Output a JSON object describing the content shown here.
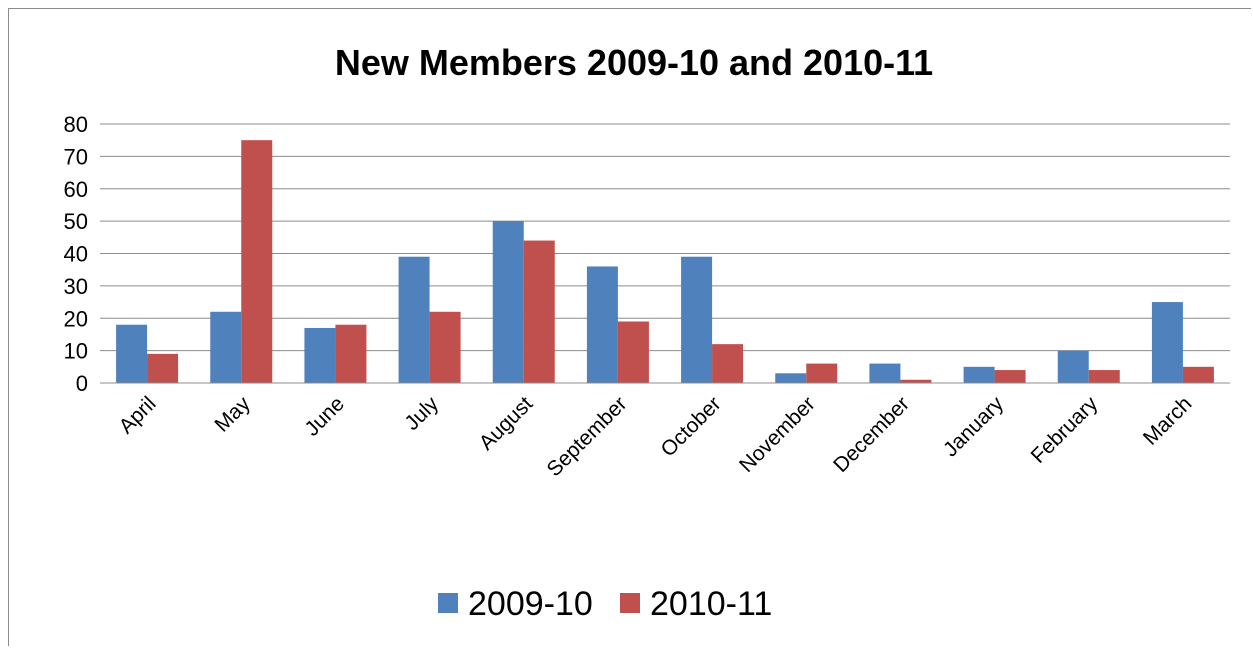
{
  "chart_data": {
    "type": "bar",
    "title": "New Members 2009-10 and 2010-11",
    "xlabel": "",
    "ylabel": "",
    "categories": [
      "April",
      "May",
      "June",
      "July",
      "August",
      "September",
      "October",
      "November",
      "December",
      "January",
      "February",
      "March"
    ],
    "series": [
      {
        "name": "2009-10",
        "color": "#4f81bd",
        "values": [
          18,
          22,
          17,
          39,
          50,
          36,
          39,
          3,
          6,
          5,
          10,
          25
        ]
      },
      {
        "name": "2010-11",
        "color": "#c0504d",
        "values": [
          9,
          75,
          18,
          22,
          44,
          19,
          12,
          6,
          1,
          4,
          4,
          5
        ]
      }
    ],
    "ylim": [
      0,
      80
    ],
    "yticks": [
      0,
      10,
      20,
      30,
      40,
      50,
      60,
      70,
      80
    ],
    "grid": true,
    "legend": "bottom"
  }
}
